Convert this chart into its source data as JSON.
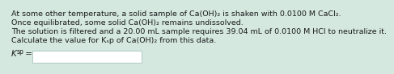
{
  "background_color": "#d4e8e0",
  "text_lines": [
    "At some other temperature, a solid sample of Ca(OH)₂ is shaken with 0.0100 M CaCl₂.",
    "Once equilibrated, some solid Ca(OH)₂ remains undissolved.",
    "The solution is filtered and a 20.00 mL sample requires 39.04 mL of 0.0100 M HCl to neutralize it.",
    "Calculate the value for Kₛp of Ca(OH)₂ from this data."
  ],
  "box_color": "#ffffff",
  "box_border_color": "#b0c8c0",
  "text_color": "#1a1a1a",
  "font_size": 6.8,
  "ksp_font_size": 7.5,
  "ksp_sub_font_size": 5.5
}
